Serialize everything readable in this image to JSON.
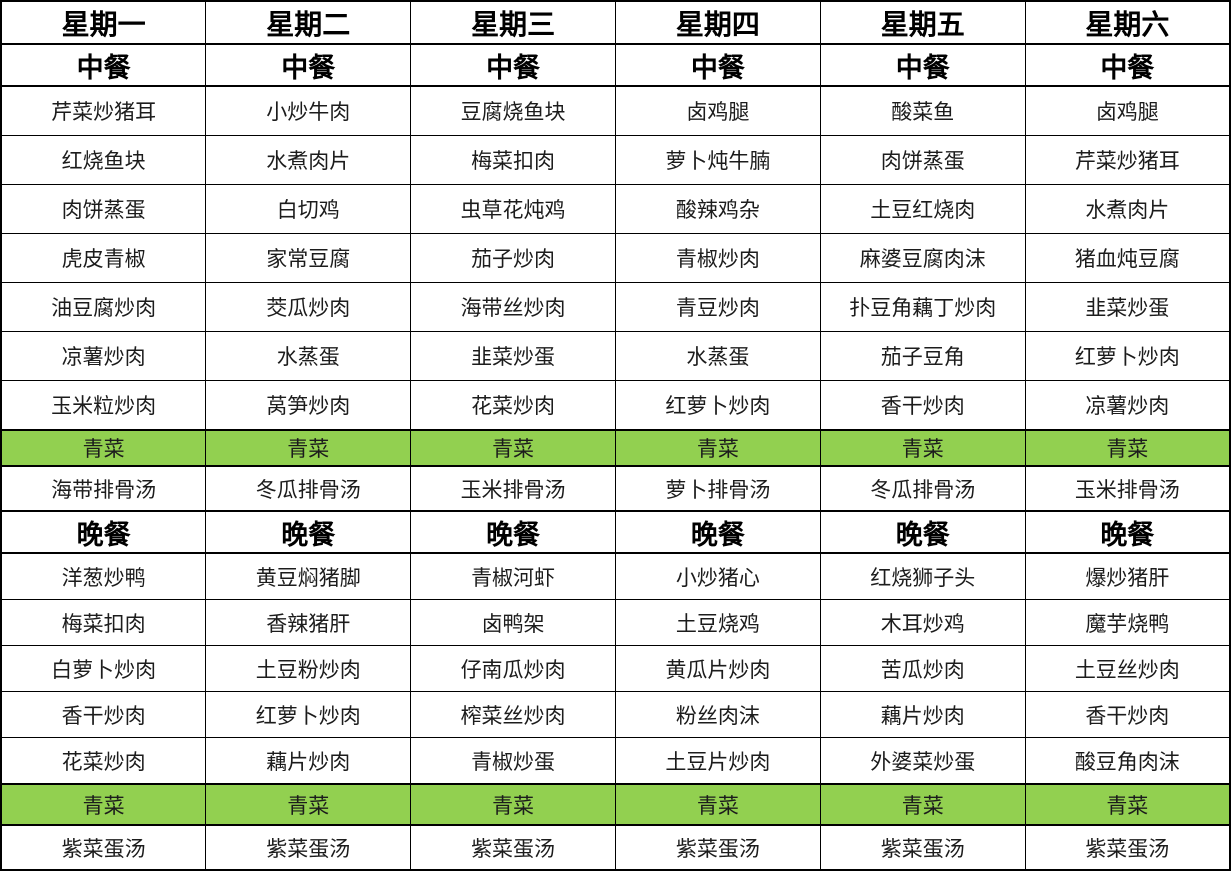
{
  "table": {
    "title": "weekly-canteen-menu",
    "highlight_color": "#92D050",
    "border_color": "#000000",
    "rows": [
      {
        "kind": "day",
        "cells": [
          "星期一",
          "星期二",
          "星期三",
          "星期四",
          "星期五",
          "星期六"
        ]
      },
      {
        "kind": "meal",
        "cells": [
          "中餐",
          "中餐",
          "中餐",
          "中餐",
          "中餐",
          "中餐"
        ]
      },
      {
        "kind": "lunch-dish",
        "cells": [
          "芹菜炒猪耳",
          "小炒牛肉",
          "豆腐烧鱼块",
          "卤鸡腿",
          "酸菜鱼",
          "卤鸡腿"
        ]
      },
      {
        "kind": "lunch-dish",
        "cells": [
          "红烧鱼块",
          "水煮肉片",
          "梅菜扣肉",
          "萝卜炖牛腩",
          "肉饼蒸蛋",
          "芹菜炒猪耳"
        ]
      },
      {
        "kind": "lunch-dish",
        "cells": [
          "肉饼蒸蛋",
          "白切鸡",
          "虫草花炖鸡",
          "酸辣鸡杂",
          "土豆红烧肉",
          "水煮肉片"
        ]
      },
      {
        "kind": "lunch-dish",
        "cells": [
          "虎皮青椒",
          "家常豆腐",
          "茄子炒肉",
          "青椒炒肉",
          "麻婆豆腐肉沫",
          "猪血炖豆腐"
        ]
      },
      {
        "kind": "lunch-dish",
        "cells": [
          "油豆腐炒肉",
          "茭瓜炒肉",
          "海带丝炒肉",
          "青豆炒肉",
          "扑豆角藕丁炒肉",
          "韭菜炒蛋"
        ]
      },
      {
        "kind": "lunch-dish",
        "cells": [
          "凉薯炒肉",
          "水蒸蛋",
          "韭菜炒蛋",
          "水蒸蛋",
          "茄子豆角",
          "红萝卜炒肉"
        ]
      },
      {
        "kind": "lunch-dish",
        "cells": [
          "玉米粒炒肉",
          "莴笋炒肉",
          "花菜炒肉",
          "红萝卜炒肉",
          "香干炒肉",
          "凉薯炒肉"
        ]
      },
      {
        "kind": "veg-lunch",
        "cells": [
          "青菜",
          "青菜",
          "青菜",
          "青菜",
          "青菜",
          "青菜"
        ]
      },
      {
        "kind": "soup",
        "cells": [
          "海带排骨汤",
          "冬瓜排骨汤",
          "玉米排骨汤",
          "萝卜排骨汤",
          "冬瓜排骨汤",
          "玉米排骨汤"
        ]
      },
      {
        "kind": "meal",
        "cells": [
          "晚餐",
          "晚餐",
          "晚餐",
          "晚餐",
          "晚餐",
          "晚餐"
        ]
      },
      {
        "kind": "dinner-dish",
        "cells": [
          "洋葱炒鸭",
          "黄豆焖猪脚",
          "青椒河虾",
          "小炒猪心",
          "红烧狮子头",
          "爆炒猪肝"
        ]
      },
      {
        "kind": "dinner-dish",
        "cells": [
          "梅菜扣肉",
          "香辣猪肝",
          "卤鸭架",
          "土豆烧鸡",
          "木耳炒鸡",
          "魔芋烧鸭"
        ]
      },
      {
        "kind": "dinner-dish",
        "cells": [
          "白萝卜炒肉",
          "土豆粉炒肉",
          "仔南瓜炒肉",
          "黄瓜片炒肉",
          "苦瓜炒肉",
          "土豆丝炒肉"
        ]
      },
      {
        "kind": "dinner-dish",
        "cells": [
          "香干炒肉",
          "红萝卜炒肉",
          "榨菜丝炒肉",
          "粉丝肉沫",
          "藕片炒肉",
          "香干炒肉"
        ]
      },
      {
        "kind": "dinner-dish",
        "cells": [
          "花菜炒肉",
          "藕片炒肉",
          "青椒炒蛋",
          "土豆片炒肉",
          "外婆菜炒蛋",
          "酸豆角肉沫"
        ]
      },
      {
        "kind": "veg-dinner",
        "cells": [
          "青菜",
          "青菜",
          "青菜",
          "青菜",
          "青菜",
          "青菜"
        ]
      },
      {
        "kind": "soup",
        "cells": [
          "紫菜蛋汤",
          "紫菜蛋汤",
          "紫菜蛋汤",
          "紫菜蛋汤",
          "紫菜蛋汤",
          "紫菜蛋汤"
        ]
      }
    ]
  }
}
